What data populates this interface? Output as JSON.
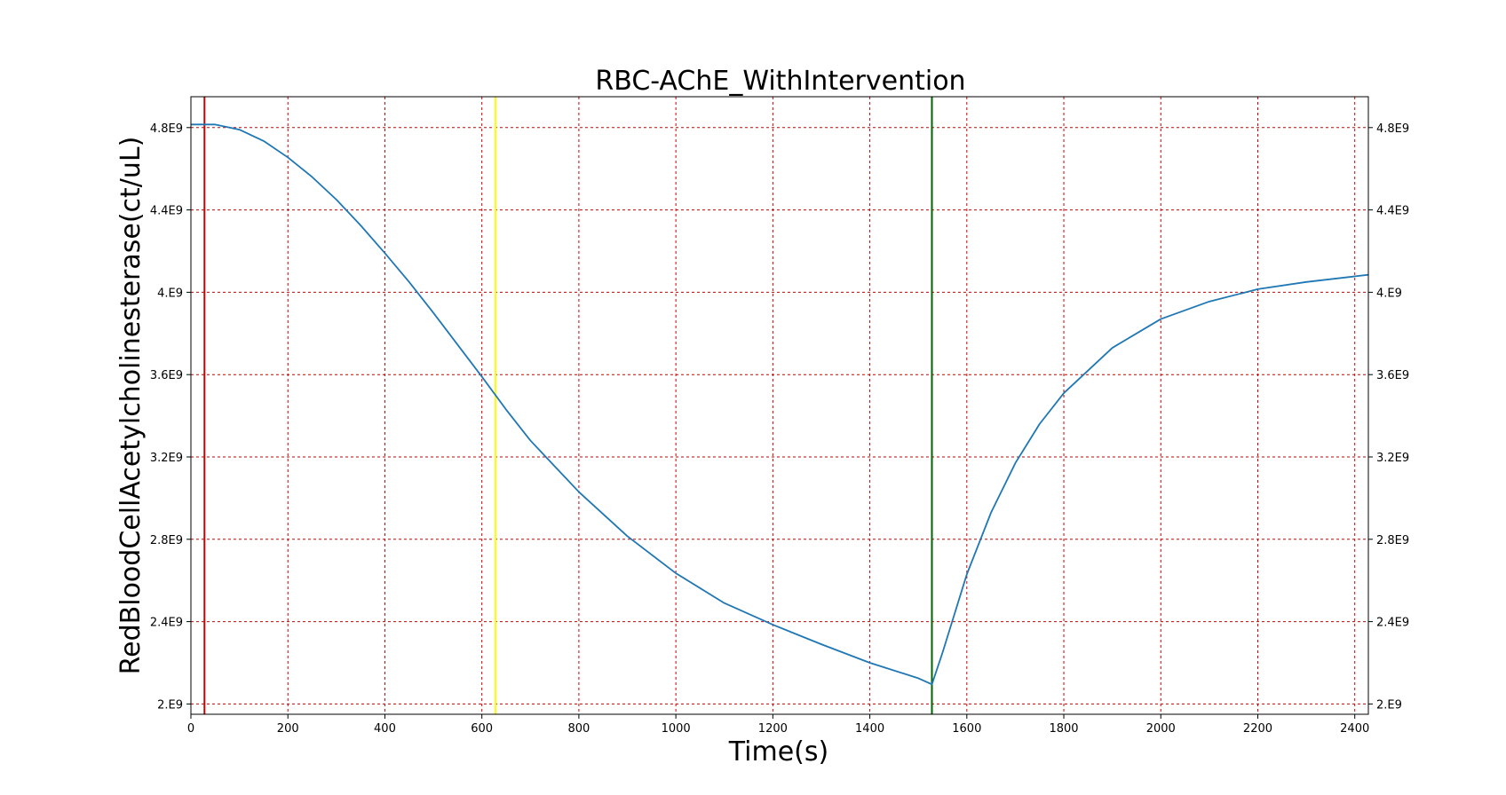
{
  "chart_data": {
    "type": "line",
    "title": "RBC-AChE_WithIntervention",
    "xlabel": "Time(s)",
    "ylabel": "RedBloodCellAcetylcholinesterase(ct/uL)",
    "xlim": [
      0,
      2428
    ],
    "ylim": [
      1950000000.0,
      4950000000.0
    ],
    "grid": true,
    "grid_color": "#cc0000",
    "line_color": "#1f77b4",
    "x_ticks": [
      0,
      200,
      400,
      600,
      800,
      1000,
      1200,
      1400,
      1600,
      1800,
      2000,
      2200,
      2400
    ],
    "x_tick_labels": [
      "0",
      "200",
      "400",
      "600",
      "800",
      "1000",
      "1200",
      "1400",
      "1600",
      "1800",
      "2000",
      "2200",
      "2400"
    ],
    "y_ticks": [
      2000000000.0,
      2400000000.0,
      2800000000.0,
      3200000000.0,
      3600000000.0,
      4000000000.0,
      4400000000.0,
      4800000000.0
    ],
    "y_tick_labels": [
      "2.E9",
      "2.4E9",
      "2.8E9",
      "3.2E9",
      "3.6E9",
      "4.E9",
      "4.4E9",
      "4.8E9"
    ],
    "vertical_markers": [
      {
        "x": 28,
        "color": "#cc0000"
      },
      {
        "x": 628,
        "color": "#ffff00"
      },
      {
        "x": 1528,
        "color": "#006400"
      }
    ],
    "series": [
      {
        "x": [
          0,
          50,
          100,
          150,
          200,
          250,
          300,
          350,
          400,
          450,
          500,
          550,
          600,
          650,
          700,
          800,
          900,
          1000,
          1100,
          1200,
          1300,
          1400,
          1500,
          1528,
          1550,
          1600,
          1650,
          1700,
          1750,
          1800,
          1900,
          2000,
          2100,
          2200,
          2300,
          2428
        ],
        "y": [
          4815000000.0,
          4815000000.0,
          4790000000.0,
          4735000000.0,
          4655000000.0,
          4560000000.0,
          4450000000.0,
          4325000000.0,
          4190000000.0,
          4050000000.0,
          3900000000.0,
          3745000000.0,
          3590000000.0,
          3430000000.0,
          3280000000.0,
          3030000000.0,
          2815000000.0,
          2635000000.0,
          2490000000.0,
          2385000000.0,
          2290000000.0,
          2200000000.0,
          2125000000.0,
          2095000000.0,
          2250000000.0,
          2630000000.0,
          2930000000.0,
          3170000000.0,
          3360000000.0,
          3510000000.0,
          3730000000.0,
          3870000000.0,
          3955000000.0,
          4015000000.0,
          4050000000.0,
          4085000000.0
        ]
      }
    ]
  }
}
